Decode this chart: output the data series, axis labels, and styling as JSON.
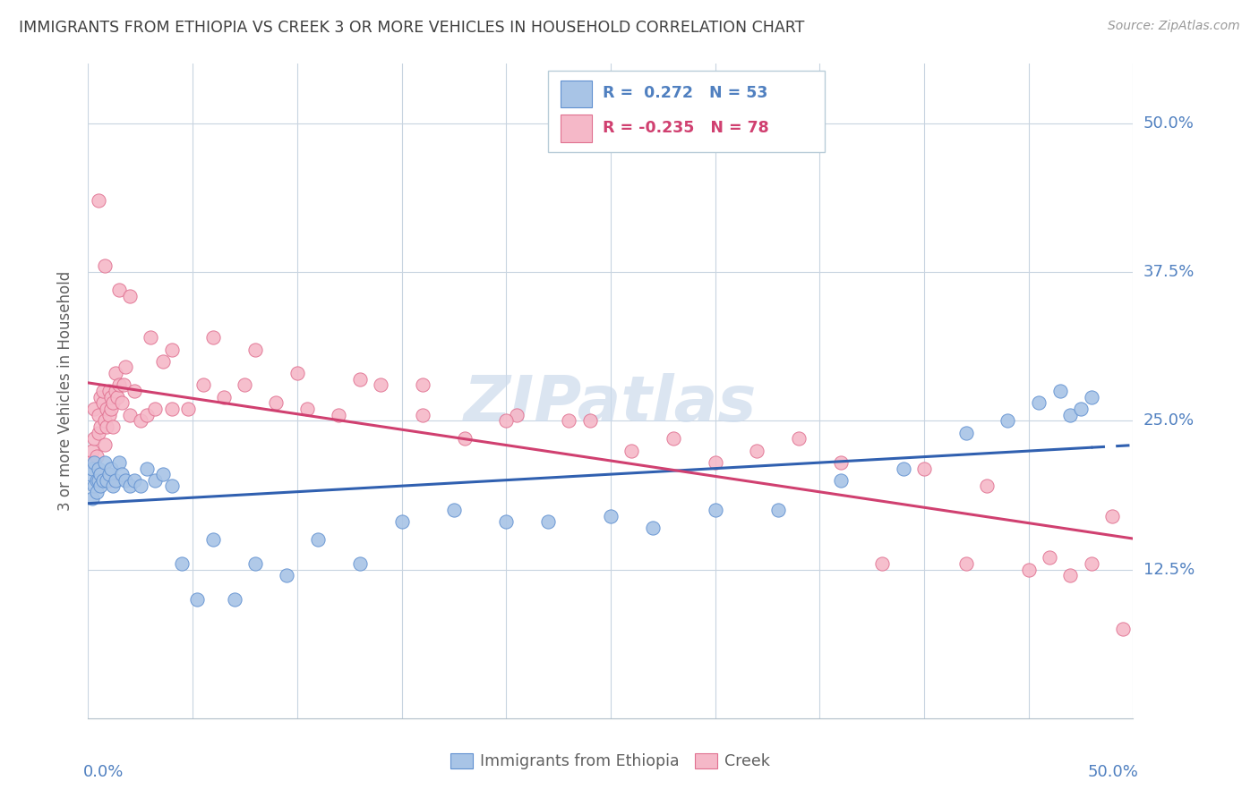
{
  "title": "IMMIGRANTS FROM ETHIOPIA VS CREEK 3 OR MORE VEHICLES IN HOUSEHOLD CORRELATION CHART",
  "source": "Source: ZipAtlas.com",
  "ylabel": "3 or more Vehicles in Household",
  "legend_blue_label": "Immigrants from Ethiopia",
  "legend_pink_label": "Creek",
  "R_blue": 0.272,
  "N_blue": 53,
  "R_pink": -0.235,
  "N_pink": 78,
  "blue_fill": "#a8c4e6",
  "pink_fill": "#f5b8c8",
  "blue_edge": "#6090d0",
  "pink_edge": "#e07090",
  "blue_line": "#3060b0",
  "pink_line": "#d04070",
  "grid_color": "#c8d4e0",
  "title_color": "#404040",
  "axis_color": "#5080c0",
  "source_color": "#999999",
  "ylabel_color": "#606060",
  "watermark_color": "#ccdaec",
  "xlim": [
    0.0,
    0.5
  ],
  "ylim": [
    0.0,
    0.55
  ],
  "xtick_n": 11,
  "ytick_vals": [
    0.125,
    0.25,
    0.375,
    0.5
  ],
  "ytick_labels": [
    "12.5%",
    "25.0%",
    "37.5%",
    "50.0%"
  ],
  "blue_x": [
    0.001,
    0.002,
    0.002,
    0.003,
    0.003,
    0.004,
    0.004,
    0.005,
    0.005,
    0.006,
    0.006,
    0.007,
    0.008,
    0.009,
    0.01,
    0.011,
    0.012,
    0.013,
    0.015,
    0.016,
    0.018,
    0.02,
    0.022,
    0.025,
    0.028,
    0.032,
    0.036,
    0.04,
    0.045,
    0.052,
    0.06,
    0.07,
    0.08,
    0.095,
    0.11,
    0.13,
    0.15,
    0.175,
    0.2,
    0.22,
    0.25,
    0.27,
    0.3,
    0.33,
    0.36,
    0.39,
    0.42,
    0.44,
    0.455,
    0.465,
    0.47,
    0.475,
    0.48
  ],
  "blue_y": [
    0.205,
    0.21,
    0.185,
    0.195,
    0.215,
    0.2,
    0.19,
    0.21,
    0.2,
    0.205,
    0.195,
    0.2,
    0.215,
    0.2,
    0.205,
    0.21,
    0.195,
    0.2,
    0.215,
    0.205,
    0.2,
    0.195,
    0.2,
    0.195,
    0.21,
    0.2,
    0.205,
    0.195,
    0.13,
    0.1,
    0.15,
    0.1,
    0.13,
    0.12,
    0.15,
    0.13,
    0.165,
    0.175,
    0.165,
    0.165,
    0.17,
    0.16,
    0.175,
    0.175,
    0.2,
    0.21,
    0.24,
    0.25,
    0.265,
    0.275,
    0.255,
    0.26,
    0.27
  ],
  "pink_x": [
    0.001,
    0.002,
    0.003,
    0.003,
    0.004,
    0.005,
    0.005,
    0.006,
    0.006,
    0.007,
    0.007,
    0.008,
    0.008,
    0.009,
    0.009,
    0.01,
    0.01,
    0.011,
    0.011,
    0.012,
    0.012,
    0.013,
    0.013,
    0.014,
    0.015,
    0.016,
    0.017,
    0.018,
    0.02,
    0.022,
    0.025,
    0.028,
    0.032,
    0.036,
    0.04,
    0.048,
    0.055,
    0.065,
    0.075,
    0.09,
    0.105,
    0.12,
    0.14,
    0.16,
    0.18,
    0.205,
    0.23,
    0.26,
    0.3,
    0.34,
    0.38,
    0.42,
    0.45,
    0.47,
    0.49,
    0.005,
    0.008,
    0.015,
    0.02,
    0.03,
    0.04,
    0.06,
    0.08,
    0.1,
    0.13,
    0.16,
    0.2,
    0.24,
    0.28,
    0.32,
    0.36,
    0.4,
    0.43,
    0.46,
    0.48,
    0.495,
    0.005,
    0.01
  ],
  "pink_y": [
    0.215,
    0.225,
    0.235,
    0.26,
    0.22,
    0.24,
    0.255,
    0.245,
    0.27,
    0.265,
    0.275,
    0.25,
    0.23,
    0.26,
    0.245,
    0.255,
    0.275,
    0.26,
    0.27,
    0.265,
    0.245,
    0.275,
    0.29,
    0.27,
    0.28,
    0.265,
    0.28,
    0.295,
    0.255,
    0.275,
    0.25,
    0.255,
    0.26,
    0.3,
    0.26,
    0.26,
    0.28,
    0.27,
    0.28,
    0.265,
    0.26,
    0.255,
    0.28,
    0.255,
    0.235,
    0.255,
    0.25,
    0.225,
    0.215,
    0.235,
    0.13,
    0.13,
    0.125,
    0.12,
    0.17,
    0.435,
    0.38,
    0.36,
    0.355,
    0.32,
    0.31,
    0.32,
    0.31,
    0.29,
    0.285,
    0.28,
    0.25,
    0.25,
    0.235,
    0.225,
    0.215,
    0.21,
    0.195,
    0.135,
    0.13,
    0.075,
    0.205,
    0.2
  ]
}
